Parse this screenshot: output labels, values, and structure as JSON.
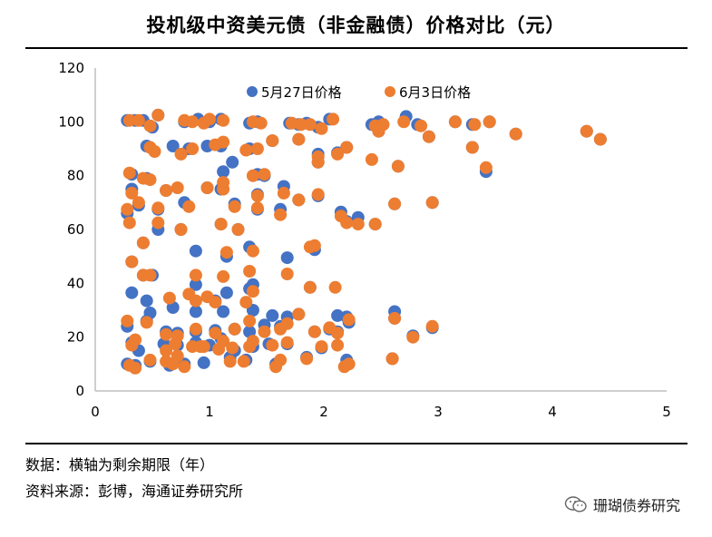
{
  "chart_data": {
    "type": "scatter",
    "title": "投机级中资美元债（非金融债）价格对比（元）",
    "xlabel": "",
    "ylabel": "",
    "xlim": [
      0,
      5
    ],
    "ylim": [
      0,
      120
    ],
    "x_ticks": [
      "0",
      "1",
      "2",
      "3",
      "4",
      "5"
    ],
    "y_ticks": [
      "0",
      "20",
      "40",
      "60",
      "80",
      "100",
      "120"
    ],
    "grid": false,
    "legend_position": "top-center",
    "series": [
      {
        "name": "5月27日价格",
        "color": "#4472C4",
        "points": [
          [
            0.28,
            100.5
          ],
          [
            0.35,
            100.5
          ],
          [
            0.42,
            100.5
          ],
          [
            0.5,
            98
          ],
          [
            0.55,
            102.5
          ],
          [
            0.78,
            100
          ],
          [
            0.9,
            101
          ],
          [
            1.0,
            100
          ],
          [
            1.1,
            101
          ],
          [
            1.35,
            99.5
          ],
          [
            1.42,
            100
          ],
          [
            1.7,
            99.5
          ],
          [
            1.78,
            99
          ],
          [
            1.85,
            99.5
          ],
          [
            1.95,
            98
          ],
          [
            2.05,
            101
          ],
          [
            2.42,
            99
          ],
          [
            2.48,
            100
          ],
          [
            2.72,
            102
          ],
          [
            2.82,
            99
          ],
          [
            3.15,
            100
          ],
          [
            3.3,
            99
          ],
          [
            3.45,
            100
          ],
          [
            3.68,
            95.5
          ],
          [
            4.3,
            96.5
          ],
          [
            4.42,
            93.5
          ],
          [
            0.45,
            91
          ],
          [
            0.68,
            91
          ],
          [
            0.82,
            90
          ],
          [
            0.98,
            91
          ],
          [
            1.1,
            91
          ],
          [
            1.35,
            90
          ],
          [
            1.55,
            93
          ],
          [
            1.78,
            93.5
          ],
          [
            1.95,
            88
          ],
          [
            2.12,
            88.5
          ],
          [
            2.48,
            96.5
          ],
          [
            2.92,
            94.5
          ],
          [
            3.3,
            90.5
          ],
          [
            1.2,
            85
          ],
          [
            1.48,
            80
          ],
          [
            1.95,
            85
          ],
          [
            2.2,
            90.5
          ],
          [
            2.65,
            83.5
          ],
          [
            3.42,
            81.5
          ],
          [
            0.32,
            80.5
          ],
          [
            0.45,
            79
          ],
          [
            1.12,
            81.5
          ],
          [
            1.42,
            80.5
          ],
          [
            0.32,
            75
          ],
          [
            0.62,
            74.5
          ],
          [
            0.78,
            70
          ],
          [
            0.98,
            75.5
          ],
          [
            1.1,
            75
          ],
          [
            1.42,
            73
          ],
          [
            1.65,
            76
          ],
          [
            1.78,
            71
          ],
          [
            1.95,
            72.5
          ],
          [
            0.28,
            66
          ],
          [
            0.38,
            69
          ],
          [
            0.55,
            67.5
          ],
          [
            1.22,
            69.5
          ],
          [
            1.42,
            67.5
          ],
          [
            1.62,
            67.5
          ],
          [
            2.15,
            66.5
          ],
          [
            2.2,
            63
          ],
          [
            2.3,
            64.5
          ],
          [
            2.45,
            62
          ],
          [
            2.62,
            69.5
          ],
          [
            2.95,
            70
          ],
          [
            0.55,
            60
          ],
          [
            0.75,
            60
          ],
          [
            1.1,
            62
          ],
          [
            1.25,
            60
          ],
          [
            0.42,
            55
          ],
          [
            0.88,
            52
          ],
          [
            1.15,
            50
          ],
          [
            1.35,
            53.5
          ],
          [
            1.68,
            49.5
          ],
          [
            1.92,
            52.5
          ],
          [
            0.32,
            48
          ],
          [
            0.42,
            43
          ],
          [
            0.5,
            43
          ],
          [
            0.88,
            39.5
          ],
          [
            1.05,
            33.5
          ],
          [
            1.15,
            36.5
          ],
          [
            1.35,
            38
          ],
          [
            1.38,
            39.5
          ],
          [
            0.32,
            36.5
          ],
          [
            0.45,
            33.5
          ],
          [
            0.48,
            29
          ],
          [
            0.68,
            31
          ],
          [
            0.88,
            29.5
          ],
          [
            1.12,
            29.5
          ],
          [
            1.38,
            30
          ],
          [
            1.55,
            28
          ],
          [
            1.68,
            27.5
          ],
          [
            1.88,
            38.5
          ],
          [
            2.12,
            28
          ],
          [
            2.2,
            27.5
          ],
          [
            2.62,
            29.5
          ],
          [
            0.28,
            24
          ],
          [
            0.45,
            26
          ],
          [
            0.62,
            22
          ],
          [
            0.72,
            21.5
          ],
          [
            0.88,
            22
          ],
          [
            1.05,
            22.5
          ],
          [
            1.22,
            23
          ],
          [
            1.35,
            22
          ],
          [
            1.48,
            24.5
          ],
          [
            1.62,
            24
          ],
          [
            1.78,
            28.5
          ],
          [
            1.92,
            22
          ],
          [
            2.05,
            23
          ],
          [
            2.12,
            22
          ],
          [
            2.22,
            25.5
          ],
          [
            2.62,
            27
          ],
          [
            2.95,
            23.5
          ],
          [
            0.32,
            18
          ],
          [
            0.38,
            15
          ],
          [
            0.6,
            17.5
          ],
          [
            0.72,
            17
          ],
          [
            0.88,
            18
          ],
          [
            1.0,
            17
          ],
          [
            1.1,
            19.5
          ],
          [
            1.22,
            15
          ],
          [
            1.38,
            16.5
          ],
          [
            1.52,
            17.5
          ],
          [
            1.68,
            17.5
          ],
          [
            1.98,
            16
          ],
          [
            2.78,
            20.5
          ],
          [
            0.28,
            10
          ],
          [
            0.35,
            9.5
          ],
          [
            0.48,
            11
          ],
          [
            0.65,
            9.5
          ],
          [
            0.78,
            10
          ],
          [
            0.95,
            10.5
          ],
          [
            1.18,
            12.5
          ],
          [
            1.32,
            11.5
          ],
          [
            1.58,
            10
          ],
          [
            1.85,
            12.5
          ],
          [
            2.2,
            11.5
          ],
          [
            2.6,
            12
          ]
        ]
      },
      {
        "name": "6月3日价格",
        "color": "#ED7D31",
        "points": [
          [
            0.3,
            100.5
          ],
          [
            0.38,
            100.5
          ],
          [
            0.48,
            98.5
          ],
          [
            0.55,
            102.5
          ],
          [
            0.78,
            100.5
          ],
          [
            0.85,
            100
          ],
          [
            0.95,
            99.5
          ],
          [
            1.0,
            101
          ],
          [
            1.12,
            100.5
          ],
          [
            1.38,
            100
          ],
          [
            1.45,
            99.5
          ],
          [
            1.72,
            99.5
          ],
          [
            1.8,
            99
          ],
          [
            1.88,
            99
          ],
          [
            1.98,
            97.5
          ],
          [
            2.08,
            101
          ],
          [
            2.45,
            98.5
          ],
          [
            2.52,
            99
          ],
          [
            2.7,
            100
          ],
          [
            2.85,
            98.5
          ],
          [
            3.15,
            100
          ],
          [
            3.32,
            99
          ],
          [
            3.45,
            100
          ],
          [
            3.68,
            95.5
          ],
          [
            4.3,
            96.5
          ],
          [
            4.42,
            93.5
          ],
          [
            0.48,
            90.5
          ],
          [
            0.52,
            89
          ],
          [
            0.75,
            88
          ],
          [
            0.85,
            90
          ],
          [
            1.05,
            91.5
          ],
          [
            1.12,
            92.5
          ],
          [
            1.32,
            89.5
          ],
          [
            1.42,
            90
          ],
          [
            1.55,
            93
          ],
          [
            1.78,
            93.5
          ],
          [
            1.95,
            87
          ],
          [
            2.12,
            88
          ],
          [
            2.2,
            90.5
          ],
          [
            2.42,
            86
          ],
          [
            2.48,
            96.5
          ],
          [
            2.92,
            94.5
          ],
          [
            3.3,
            90.5
          ],
          [
            1.48,
            80.5
          ],
          [
            1.95,
            85
          ],
          [
            2.65,
            83.5
          ],
          [
            3.42,
            83
          ],
          [
            0.3,
            81
          ],
          [
            0.42,
            79
          ],
          [
            0.48,
            78.5
          ],
          [
            1.12,
            77.5
          ],
          [
            1.38,
            80
          ],
          [
            0.32,
            73.5
          ],
          [
            0.38,
            70
          ],
          [
            0.62,
            74.5
          ],
          [
            0.72,
            75.5
          ],
          [
            0.82,
            68.5
          ],
          [
            0.98,
            75.5
          ],
          [
            1.12,
            75
          ],
          [
            1.42,
            72.5
          ],
          [
            1.65,
            73.5
          ],
          [
            1.78,
            71
          ],
          [
            1.95,
            73
          ],
          [
            0.28,
            67.5
          ],
          [
            0.55,
            68
          ],
          [
            1.22,
            68.5
          ],
          [
            1.42,
            68
          ],
          [
            1.62,
            65.5
          ],
          [
            2.15,
            65
          ],
          [
            2.2,
            62.5
          ],
          [
            2.3,
            62
          ],
          [
            2.45,
            62
          ],
          [
            2.62,
            69.5
          ],
          [
            2.95,
            70
          ],
          [
            0.3,
            62.5
          ],
          [
            0.55,
            62.5
          ],
          [
            0.75,
            60
          ],
          [
            1.1,
            62
          ],
          [
            1.25,
            60
          ],
          [
            0.42,
            55
          ],
          [
            1.15,
            51.5
          ],
          [
            1.38,
            52
          ],
          [
            1.88,
            53.5
          ],
          [
            1.92,
            54
          ],
          [
            0.32,
            48
          ],
          [
            0.42,
            43
          ],
          [
            0.48,
            43
          ],
          [
            0.88,
            43
          ],
          [
            1.12,
            42.5
          ],
          [
            1.35,
            44.5
          ],
          [
            1.68,
            43.5
          ],
          [
            0.65,
            34.5
          ],
          [
            0.82,
            36
          ],
          [
            0.88,
            33.5
          ],
          [
            0.98,
            35
          ],
          [
            1.05,
            33
          ],
          [
            1.32,
            33
          ],
          [
            1.38,
            37
          ],
          [
            1.88,
            38.5
          ],
          [
            2.1,
            38.5
          ],
          [
            0.28,
            26
          ],
          [
            0.45,
            25.5
          ],
          [
            0.62,
            21
          ],
          [
            0.72,
            20.5
          ],
          [
            0.88,
            23
          ],
          [
            1.05,
            21.5
          ],
          [
            1.22,
            23
          ],
          [
            1.35,
            26
          ],
          [
            1.48,
            22
          ],
          [
            1.62,
            23
          ],
          [
            1.68,
            25
          ],
          [
            1.78,
            28.5
          ],
          [
            1.92,
            22
          ],
          [
            2.05,
            23.5
          ],
          [
            2.12,
            21.5
          ],
          [
            2.22,
            26.5
          ],
          [
            2.62,
            27
          ],
          [
            2.78,
            20
          ],
          [
            2.95,
            24
          ],
          [
            0.32,
            17
          ],
          [
            0.35,
            19
          ],
          [
            0.62,
            15
          ],
          [
            0.7,
            17.5
          ],
          [
            0.85,
            16.5
          ],
          [
            0.95,
            16.5
          ],
          [
            1.08,
            15.5
          ],
          [
            1.12,
            18.5
          ],
          [
            1.2,
            16
          ],
          [
            1.35,
            16.5
          ],
          [
            1.38,
            18.5
          ],
          [
            1.55,
            17
          ],
          [
            1.68,
            18
          ],
          [
            1.98,
            16.5
          ],
          [
            2.12,
            17
          ],
          [
            0.3,
            9.5
          ],
          [
            0.35,
            8.5
          ],
          [
            0.48,
            11.5
          ],
          [
            0.62,
            11
          ],
          [
            0.68,
            10
          ],
          [
            0.72,
            13
          ],
          [
            0.78,
            9
          ],
          [
            0.92,
            16.5
          ],
          [
            1.18,
            11
          ],
          [
            1.3,
            11
          ],
          [
            1.58,
            9
          ],
          [
            1.62,
            11.5
          ],
          [
            1.85,
            12
          ],
          [
            2.18,
            9
          ],
          [
            2.22,
            10
          ],
          [
            2.6,
            12
          ]
        ]
      }
    ]
  },
  "notes": {
    "line1": "数据：横轴为剩余期限（年）",
    "line2": "资料来源：彭博，海通证券研究所"
  },
  "watermark": {
    "text": "珊瑚债券研究",
    "icon": "wechat-icon"
  }
}
